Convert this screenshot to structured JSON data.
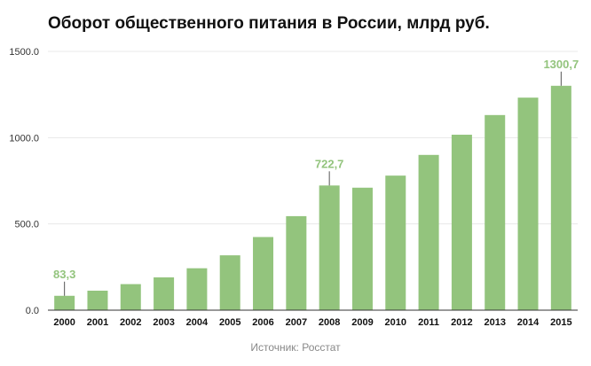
{
  "chart_data": {
    "type": "bar",
    "title": "Оборот общественного питания в России, млрд руб.",
    "categories": [
      "2000",
      "2001",
      "2002",
      "2003",
      "2004",
      "2005",
      "2006",
      "2007",
      "2008",
      "2009",
      "2010",
      "2011",
      "2012",
      "2013",
      "2014",
      "2015"
    ],
    "values": [
      83.3,
      113,
      151,
      190,
      243,
      318,
      424,
      545,
      722.7,
      710,
      780,
      900,
      1017,
      1131,
      1232,
      1300.7
    ],
    "data_labels": [
      {
        "index": 0,
        "text": "83,3"
      },
      {
        "index": 8,
        "text": "722,7"
      },
      {
        "index": 15,
        "text": "1300,7"
      }
    ],
    "y_ticks": [
      "0.0",
      "500.0",
      "1000.0",
      "1500.0"
    ],
    "ylim": [
      0,
      1500
    ],
    "xlabel": "",
    "ylabel": "",
    "grid": true,
    "legend": "none",
    "source": "Источник: Росстат",
    "colors": {
      "bar": "#93c47d",
      "label": "#93c47d",
      "grid": "#e8e8e8",
      "axis": "#333333"
    }
  }
}
